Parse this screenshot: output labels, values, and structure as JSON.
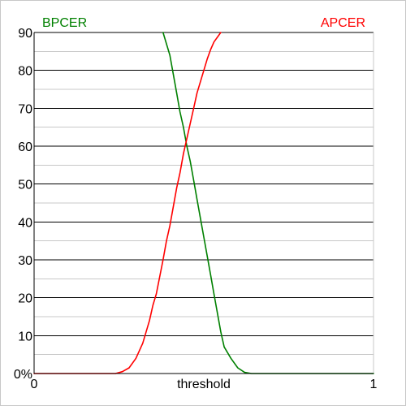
{
  "chart_data": {
    "type": "line",
    "xlabel": "threshold",
    "x_tick_labels": [
      "0",
      "1"
    ],
    "y_tick_labels": [
      "0%",
      "10",
      "20",
      "30",
      "40",
      "50",
      "60",
      "70",
      "80",
      "90"
    ],
    "xlim": [
      0,
      1
    ],
    "ylim": [
      0,
      90
    ],
    "major_grid_step": 10,
    "minor_grid_step": 5,
    "grid": true,
    "series": [
      {
        "name": "BPCER",
        "color": "#008000",
        "label_position": "top-left",
        "x": [
          0.38,
          0.4,
          0.41,
          0.42,
          0.43,
          0.44,
          0.45,
          0.46,
          0.47,
          0.48,
          0.49,
          0.5,
          0.51,
          0.52,
          0.53,
          0.54,
          0.55,
          0.56,
          0.58,
          0.6,
          0.62,
          0.64,
          0.66,
          1.0
        ],
        "values": [
          90,
          84,
          79,
          74,
          69,
          65,
          60,
          56,
          51,
          46,
          41,
          36,
          31,
          26,
          21,
          16,
          11,
          7,
          4,
          1.5,
          0.3,
          0,
          0,
          0
        ]
      },
      {
        "name": "APCER",
        "color": "#ff0000",
        "label_position": "top-right",
        "x": [
          0,
          0.24,
          0.26,
          0.28,
          0.3,
          0.32,
          0.34,
          0.35,
          0.36,
          0.38,
          0.39,
          0.4,
          0.41,
          0.42,
          0.43,
          0.44,
          0.45,
          0.46,
          0.47,
          0.48,
          0.49,
          0.5,
          0.51,
          0.52,
          0.53,
          0.55
        ],
        "values": [
          0,
          0,
          0.5,
          1.5,
          4,
          8,
          14,
          18,
          21,
          30,
          35,
          39,
          44,
          49,
          53,
          58,
          62,
          66,
          70,
          74,
          77,
          80,
          83,
          85.5,
          87.5,
          90
        ]
      }
    ]
  }
}
